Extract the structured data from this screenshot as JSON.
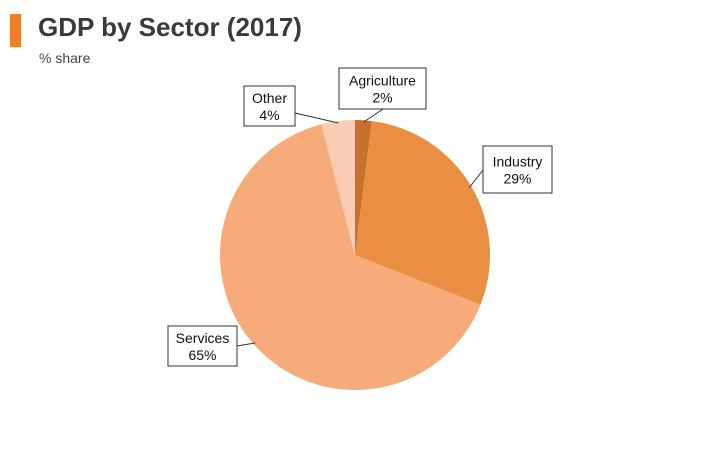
{
  "header": {
    "title": "GDP by Sector (2017)",
    "subtitle": "% share",
    "accent_color": "#F07E26"
  },
  "chart_data": {
    "type": "pie",
    "title": "GDP by Sector (2017)",
    "subtitle": "% share",
    "unit": "%",
    "start": "12 o'clock, clockwise",
    "slices": [
      {
        "label": "Agriculture",
        "value": 2,
        "display": "2%",
        "color": "#C8702E"
      },
      {
        "label": "Industry",
        "value": 29,
        "display": "29%",
        "color": "#E98E43"
      },
      {
        "label": "Services",
        "value": 65,
        "display": "65%",
        "color": "#F7AA7A"
      },
      {
        "label": "Other",
        "value": 4,
        "display": "4%",
        "color": "#FACBB5"
      }
    ]
  }
}
